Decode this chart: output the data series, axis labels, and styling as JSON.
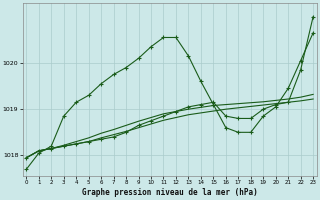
{
  "title": "Graphe pression niveau de la mer (hPa)",
  "background_color": "#cce8e8",
  "line_color": "#1a5c1a",
  "grid_color": "#aacccc",
  "ylim": [
    1017.55,
    1021.3
  ],
  "xlim": [
    -0.3,
    23.3
  ],
  "yticks": [
    1018,
    1019,
    1020
  ],
  "xticks": [
    0,
    1,
    2,
    3,
    4,
    5,
    6,
    7,
    8,
    9,
    10,
    11,
    12,
    13,
    14,
    15,
    16,
    17,
    18,
    19,
    20,
    21,
    22,
    23
  ],
  "series_peak": [
    1017.7,
    1018.05,
    1018.2,
    1018.85,
    1019.15,
    1019.3,
    1019.55,
    1019.75,
    1019.9,
    1020.1,
    1020.35,
    1020.55,
    1020.55,
    1020.15,
    1019.6,
    1019.1,
    1018.6,
    1018.5,
    1018.5,
    1018.85,
    1019.05,
    1019.45,
    1020.05,
    1020.65
  ],
  "series_diag": [
    1017.95,
    1018.1,
    1018.15,
    1018.2,
    1018.25,
    1018.3,
    1018.35,
    1018.4,
    1018.5,
    1018.65,
    1018.75,
    1018.85,
    1018.95,
    1019.05,
    1019.1,
    1019.15,
    1018.85,
    1018.8,
    1018.8,
    1019.0,
    1019.1,
    1019.15,
    1019.85,
    1021.0
  ],
  "series_flat1": [
    1017.95,
    1018.1,
    1018.15,
    1018.2,
    1018.25,
    1018.3,
    1018.38,
    1018.45,
    1018.52,
    1018.6,
    1018.68,
    1018.76,
    1018.82,
    1018.88,
    1018.92,
    1018.96,
    1019.0,
    1019.03,
    1019.06,
    1019.09,
    1019.12,
    1019.15,
    1019.18,
    1019.22
  ],
  "series_flat2": [
    1017.95,
    1018.1,
    1018.15,
    1018.22,
    1018.3,
    1018.38,
    1018.48,
    1018.56,
    1018.65,
    1018.74,
    1018.82,
    1018.9,
    1018.95,
    1019.0,
    1019.04,
    1019.08,
    1019.1,
    1019.12,
    1019.14,
    1019.16,
    1019.19,
    1019.22,
    1019.26,
    1019.32
  ]
}
